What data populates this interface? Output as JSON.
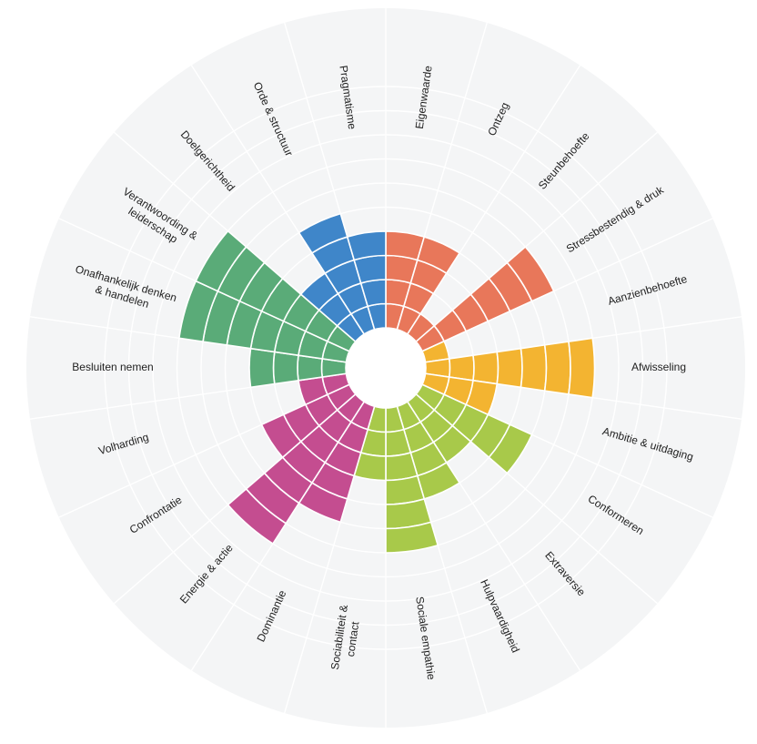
{
  "chart_data": {
    "type": "polar-area",
    "max_value": 10,
    "legend": "none",
    "grid": true,
    "categories": [
      {
        "label": "Eigenwaarde",
        "value": 4,
        "color": "#e8775a"
      },
      {
        "label": "Ontzeg",
        "value": 4,
        "color": "#e8775a"
      },
      {
        "label": "Steunbehoefte",
        "value": 1,
        "color": "#e8775a"
      },
      {
        "label": "Stressbestendig & druk",
        "value": 6,
        "color": "#e8775a"
      },
      {
        "label": "Aanzienbehoefte",
        "value": 1,
        "color": "#f3b431"
      },
      {
        "label": "Afwisseling",
        "value": 7,
        "color": "#f3b431"
      },
      {
        "label": "Ambitie & uitdaging",
        "value": 3,
        "color": "#f3b431"
      },
      {
        "label": "Conformeren",
        "value": 5,
        "color": "#a8c94a"
      },
      {
        "label": "Extraversie",
        "value": 3,
        "color": "#a8c94a"
      },
      {
        "label": "Hulpvaardigheid",
        "value": 4,
        "color": "#a8c94a"
      },
      {
        "label": "Sociale empathie",
        "value": 6,
        "color": "#a8c94a"
      },
      {
        "label": "Sociabiliteit & contact",
        "value": 3,
        "color": "#a8c94a"
      },
      {
        "label": "Dominantie",
        "value": 5,
        "color": "#c44d90"
      },
      {
        "label": "Energie & actie",
        "value": 7,
        "color": "#c44d90"
      },
      {
        "label": "Confrontatie",
        "value": 4,
        "color": "#c44d90"
      },
      {
        "label": "Volharding",
        "value": 2,
        "color": "#c44d90"
      },
      {
        "label": "Besluiten nemen",
        "value": 4,
        "color": "#5aab78"
      },
      {
        "label": "Onafhankelijk denken & handelen",
        "value": 7,
        "color": "#5aab78"
      },
      {
        "label": "Verantwoording & leiderschap",
        "value": 7,
        "color": "#5aab78"
      },
      {
        "label": "Doelgerichtheid",
        "value": 3,
        "color": "#3f86c9"
      },
      {
        "label": "Orde & structuur",
        "value": 5,
        "color": "#3f86c9"
      },
      {
        "label": "Pragmatisme",
        "value": 4,
        "color": "#3f86c9"
      }
    ]
  }
}
